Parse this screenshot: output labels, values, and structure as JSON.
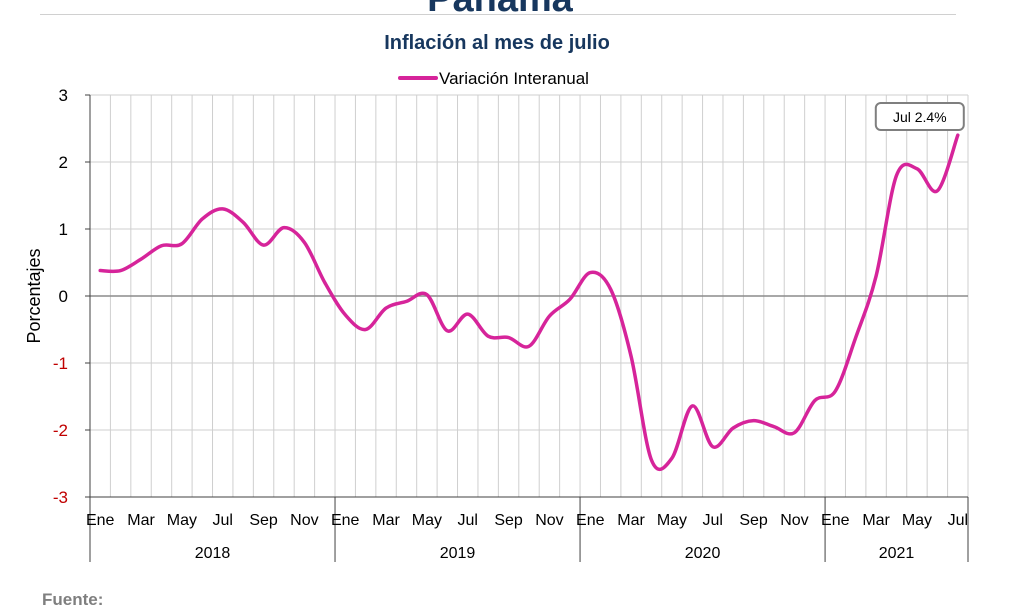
{
  "header": {
    "title": "Panamá"
  },
  "footer": {
    "source_label": "Fuente:"
  },
  "chart_data": {
    "type": "line",
    "title": "Inflación al mes de julio",
    "ylabel": "Porcentajes",
    "xlabel": "",
    "ylim": [
      -3,
      3
    ],
    "yticks": [
      3,
      2,
      1,
      0,
      -1,
      -2,
      -3
    ],
    "grid": true,
    "legend": "top-center",
    "month_labels": [
      "Ene",
      "Mar",
      "May",
      "Jul",
      "Sep",
      "Nov",
      "Ene",
      "Mar",
      "May",
      "Jul",
      "Sep",
      "Nov",
      "Ene",
      "Mar",
      "May",
      "Jul",
      "Sep",
      "Nov",
      "Ene",
      "Mar",
      "May",
      "Jul"
    ],
    "years": [
      "2018",
      "2019",
      "2020",
      "2021"
    ],
    "x": [
      "2018-01",
      "2018-02",
      "2018-03",
      "2018-04",
      "2018-05",
      "2018-06",
      "2018-07",
      "2018-08",
      "2018-09",
      "2018-10",
      "2018-11",
      "2018-12",
      "2019-01",
      "2019-02",
      "2019-03",
      "2019-04",
      "2019-05",
      "2019-06",
      "2019-07",
      "2019-08",
      "2019-09",
      "2019-10",
      "2019-11",
      "2019-12",
      "2020-01",
      "2020-02",
      "2020-03",
      "2020-04",
      "2020-05",
      "2020-06",
      "2020-07",
      "2020-08",
      "2020-09",
      "2020-10",
      "2020-11",
      "2020-12",
      "2021-01",
      "2021-02",
      "2021-03",
      "2021-04",
      "2021-05",
      "2021-06",
      "2021-07"
    ],
    "series": [
      {
        "name": "Variación Interanual",
        "color": "#d6249a",
        "values": [
          0.38,
          0.38,
          0.55,
          0.75,
          0.78,
          1.15,
          1.3,
          1.1,
          0.76,
          1.02,
          0.8,
          0.2,
          -0.28,
          -0.5,
          -0.18,
          -0.08,
          0.02,
          -0.52,
          -0.27,
          -0.6,
          -0.62,
          -0.75,
          -0.3,
          -0.05,
          0.35,
          0.1,
          -0.9,
          -2.45,
          -2.42,
          -1.64,
          -2.25,
          -1.97,
          -1.86,
          -1.95,
          -2.04,
          -1.56,
          -1.42,
          -0.62,
          0.3,
          1.8,
          1.9,
          1.57,
          2.4
        ]
      }
    ],
    "annotations": [
      {
        "text": "Jul 2.4%",
        "x": "2021-07",
        "y": 2.4
      }
    ]
  }
}
